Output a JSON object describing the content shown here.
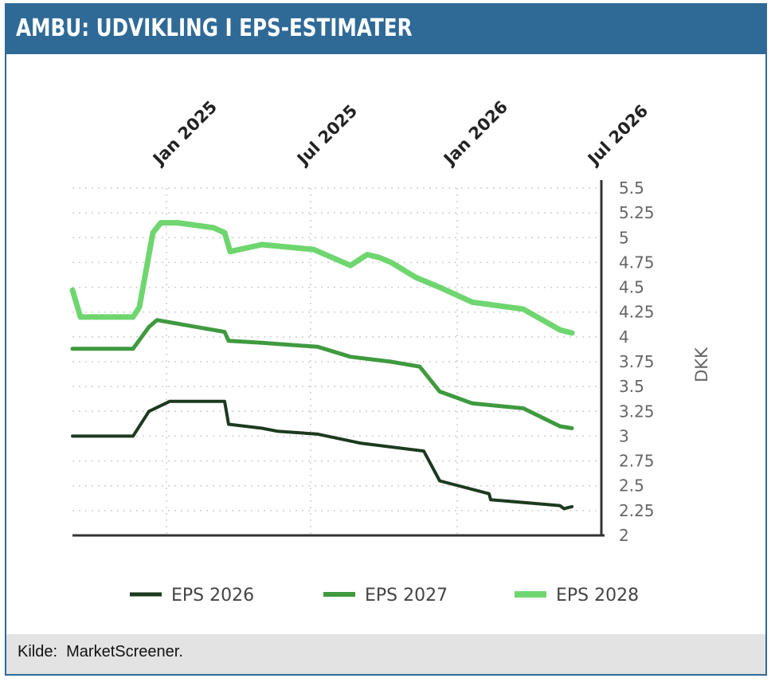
{
  "title": "AMBU: UDVIKLING I EPS-ESTIMATER",
  "source": "Kilde:  MarketScreener.",
  "colors": {
    "header": "#2f6a97",
    "eps2026": "#1c3a1f",
    "eps2027": "#3f9a3f",
    "eps2028": "#6fd66f"
  },
  "chart_data": {
    "type": "line",
    "xlabel": "",
    "ylabel": "DKK",
    "ylim": [
      2,
      5.5
    ],
    "yticks": [
      2,
      2.25,
      2.5,
      2.75,
      3,
      3.25,
      3.5,
      3.75,
      4,
      4.25,
      4.5,
      4.75,
      5,
      5.25,
      5.5
    ],
    "ytick_labels": [
      "2",
      "2.25",
      "2.5",
      "2.75",
      "3",
      "3.25",
      "3.5",
      "3.75",
      "4",
      "4.25",
      "4.5",
      "4.75",
      "5",
      "5.25",
      "5.5"
    ],
    "xlim": [
      "2024-09-05",
      "2026-07-01"
    ],
    "xticks": [
      "2025-01-01",
      "2025-07-01",
      "2026-01-01",
      "2026-07-01"
    ],
    "xtick_labels": [
      "Jan 2025",
      "Jul 2025",
      "Jan 2026",
      "Jul 2026"
    ],
    "grid": true,
    "legend_position": "bottom",
    "series": [
      {
        "name": "EPS 2026",
        "x": [
          "2024-09-05",
          "2024-11-20",
          "2024-12-10",
          "2025-01-05",
          "2025-03-15",
          "2025-03-20",
          "2025-05-01",
          "2025-05-20",
          "2025-07-10",
          "2025-09-01",
          "2025-11-20",
          "2025-12-10",
          "2026-02-10",
          "2026-02-12",
          "2026-05-10",
          "2026-05-15",
          "2026-05-25"
        ],
        "y": [
          3.0,
          3.0,
          3.25,
          3.35,
          3.35,
          3.12,
          3.08,
          3.05,
          3.02,
          2.93,
          2.85,
          2.55,
          2.42,
          2.36,
          2.3,
          2.27,
          2.29
        ]
      },
      {
        "name": "EPS 2027",
        "x": [
          "2024-09-05",
          "2024-11-20",
          "2024-12-10",
          "2024-12-20",
          "2025-03-15",
          "2025-03-20",
          "2025-05-01",
          "2025-07-10",
          "2025-08-20",
          "2025-10-10",
          "2025-11-15",
          "2025-12-10",
          "2026-01-20",
          "2026-03-25",
          "2026-05-10",
          "2026-05-25"
        ],
        "y": [
          3.88,
          3.88,
          4.1,
          4.17,
          4.05,
          3.96,
          3.94,
          3.9,
          3.8,
          3.75,
          3.7,
          3.45,
          3.33,
          3.28,
          3.1,
          3.08
        ]
      },
      {
        "name": "EPS 2028",
        "x": [
          "2024-09-05",
          "2024-09-15",
          "2024-11-20",
          "2024-11-28",
          "2024-12-15",
          "2024-12-25",
          "2025-01-15",
          "2025-03-01",
          "2025-03-15",
          "2025-03-22",
          "2025-05-01",
          "2025-07-05",
          "2025-08-20",
          "2025-09-10",
          "2025-09-25",
          "2025-10-10",
          "2025-11-10",
          "2025-12-10",
          "2026-01-20",
          "2026-03-25",
          "2026-05-10",
          "2026-05-25"
        ],
        "y": [
          4.47,
          4.2,
          4.2,
          4.3,
          5.05,
          5.15,
          5.15,
          5.1,
          5.05,
          4.86,
          4.93,
          4.88,
          4.72,
          4.83,
          4.8,
          4.75,
          4.6,
          4.5,
          4.35,
          4.28,
          4.07,
          4.04
        ]
      }
    ]
  }
}
